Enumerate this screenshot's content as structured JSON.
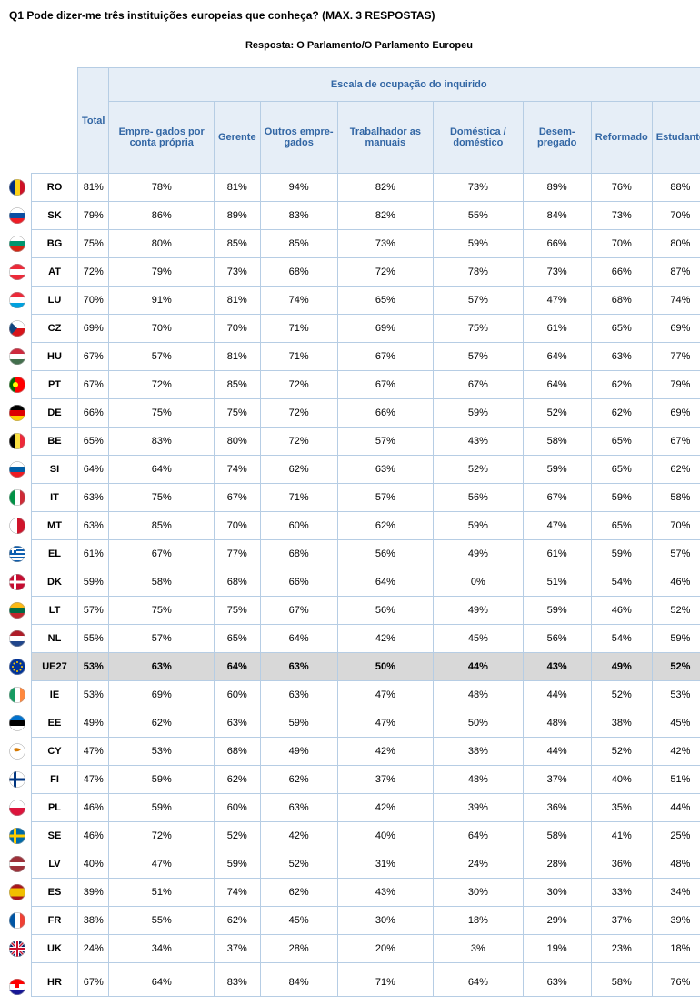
{
  "question": "Q1 Pode dizer-me três instituições europeias que conheça? (MAX. 3 RESPOSTAS)",
  "responseTitle": "Resposta: O Parlamento/O Parlamento Europeu",
  "columns": {
    "total": "Total",
    "groupHeader": "Escala de ocupação do inquirido",
    "sub": [
      "Empre-\ngados por conta própria",
      "Gerente",
      "Outros empre-\ngados",
      "Trabalhador\nas manuais",
      "Doméstica /\ndoméstico",
      "Desem-\npregado",
      "Reformado",
      "Estudante"
    ]
  },
  "colors": {
    "headerBg": "#e6eef7",
    "headerText": "#3266a4",
    "border": "#b6cde4",
    "highlight": "#d8d8d8"
  },
  "rows": [
    {
      "code": "RO",
      "flag": "ro",
      "vals": [
        "81%",
        "78%",
        "81%",
        "94%",
        "82%",
        "73%",
        "89%",
        "76%",
        "88%"
      ]
    },
    {
      "code": "SK",
      "flag": "sk",
      "vals": [
        "79%",
        "86%",
        "89%",
        "83%",
        "82%",
        "55%",
        "84%",
        "73%",
        "70%"
      ]
    },
    {
      "code": "BG",
      "flag": "bg",
      "vals": [
        "75%",
        "80%",
        "85%",
        "85%",
        "73%",
        "59%",
        "66%",
        "70%",
        "80%"
      ]
    },
    {
      "code": "AT",
      "flag": "at",
      "vals": [
        "72%",
        "79%",
        "73%",
        "68%",
        "72%",
        "78%",
        "73%",
        "66%",
        "87%"
      ]
    },
    {
      "code": "LU",
      "flag": "lu",
      "vals": [
        "70%",
        "91%",
        "81%",
        "74%",
        "65%",
        "57%",
        "47%",
        "68%",
        "74%"
      ]
    },
    {
      "code": "CZ",
      "flag": "cz",
      "vals": [
        "69%",
        "70%",
        "70%",
        "71%",
        "69%",
        "75%",
        "61%",
        "65%",
        "69%"
      ]
    },
    {
      "code": "HU",
      "flag": "hu",
      "vals": [
        "67%",
        "57%",
        "81%",
        "71%",
        "67%",
        "57%",
        "64%",
        "63%",
        "77%"
      ]
    },
    {
      "code": "PT",
      "flag": "pt",
      "vals": [
        "67%",
        "72%",
        "85%",
        "72%",
        "67%",
        "67%",
        "64%",
        "62%",
        "79%"
      ]
    },
    {
      "code": "DE",
      "flag": "de",
      "vals": [
        "66%",
        "75%",
        "75%",
        "72%",
        "66%",
        "59%",
        "52%",
        "62%",
        "69%"
      ]
    },
    {
      "code": "BE",
      "flag": "be",
      "vals": [
        "65%",
        "83%",
        "80%",
        "72%",
        "57%",
        "43%",
        "58%",
        "65%",
        "67%"
      ]
    },
    {
      "code": "SI",
      "flag": "si",
      "vals": [
        "64%",
        "64%",
        "74%",
        "62%",
        "63%",
        "52%",
        "59%",
        "65%",
        "62%"
      ]
    },
    {
      "code": "IT",
      "flag": "it",
      "vals": [
        "63%",
        "75%",
        "67%",
        "71%",
        "57%",
        "56%",
        "67%",
        "59%",
        "58%"
      ]
    },
    {
      "code": "MT",
      "flag": "mt",
      "vals": [
        "63%",
        "85%",
        "70%",
        "60%",
        "62%",
        "59%",
        "47%",
        "65%",
        "70%"
      ]
    },
    {
      "code": "EL",
      "flag": "el",
      "vals": [
        "61%",
        "67%",
        "77%",
        "68%",
        "56%",
        "49%",
        "61%",
        "59%",
        "57%"
      ]
    },
    {
      "code": "DK",
      "flag": "dk",
      "vals": [
        "59%",
        "58%",
        "68%",
        "66%",
        "64%",
        "0%",
        "51%",
        "54%",
        "46%"
      ]
    },
    {
      "code": "LT",
      "flag": "lt",
      "vals": [
        "57%",
        "75%",
        "75%",
        "67%",
        "56%",
        "49%",
        "59%",
        "46%",
        "52%"
      ]
    },
    {
      "code": "NL",
      "flag": "nl",
      "vals": [
        "55%",
        "57%",
        "65%",
        "64%",
        "42%",
        "45%",
        "56%",
        "54%",
        "59%"
      ]
    },
    {
      "code": "UE27",
      "flag": "eu",
      "vals": [
        "53%",
        "63%",
        "64%",
        "63%",
        "50%",
        "44%",
        "43%",
        "49%",
        "52%"
      ],
      "highlight": true
    },
    {
      "code": "IE",
      "flag": "ie",
      "vals": [
        "53%",
        "69%",
        "60%",
        "63%",
        "47%",
        "48%",
        "44%",
        "52%",
        "53%"
      ]
    },
    {
      "code": "EE",
      "flag": "ee",
      "vals": [
        "49%",
        "62%",
        "63%",
        "59%",
        "47%",
        "50%",
        "48%",
        "38%",
        "45%"
      ]
    },
    {
      "code": "CY",
      "flag": "cy",
      "vals": [
        "47%",
        "53%",
        "68%",
        "49%",
        "42%",
        "38%",
        "44%",
        "52%",
        "42%"
      ]
    },
    {
      "code": "FI",
      "flag": "fi",
      "vals": [
        "47%",
        "59%",
        "62%",
        "62%",
        "37%",
        "48%",
        "37%",
        "40%",
        "51%"
      ]
    },
    {
      "code": "PL",
      "flag": "pl",
      "vals": [
        "46%",
        "59%",
        "60%",
        "63%",
        "42%",
        "39%",
        "36%",
        "35%",
        "44%"
      ]
    },
    {
      "code": "SE",
      "flag": "se",
      "vals": [
        "46%",
        "72%",
        "52%",
        "42%",
        "40%",
        "64%",
        "58%",
        "41%",
        "25%"
      ]
    },
    {
      "code": "LV",
      "flag": "lv",
      "vals": [
        "40%",
        "47%",
        "59%",
        "52%",
        "31%",
        "24%",
        "28%",
        "36%",
        "48%"
      ]
    },
    {
      "code": "ES",
      "flag": "es",
      "vals": [
        "39%",
        "51%",
        "74%",
        "62%",
        "43%",
        "30%",
        "30%",
        "33%",
        "34%"
      ]
    },
    {
      "code": "FR",
      "flag": "fr",
      "vals": [
        "38%",
        "55%",
        "62%",
        "45%",
        "30%",
        "18%",
        "29%",
        "37%",
        "39%"
      ]
    },
    {
      "code": "UK",
      "flag": "uk",
      "vals": [
        "24%",
        "34%",
        "37%",
        "28%",
        "20%",
        "3%",
        "19%",
        "23%",
        "18%"
      ]
    },
    {
      "code": "HR",
      "flag": "hr",
      "vals": [
        "67%",
        "64%",
        "83%",
        "84%",
        "71%",
        "64%",
        "63%",
        "58%",
        "76%"
      ]
    }
  ]
}
